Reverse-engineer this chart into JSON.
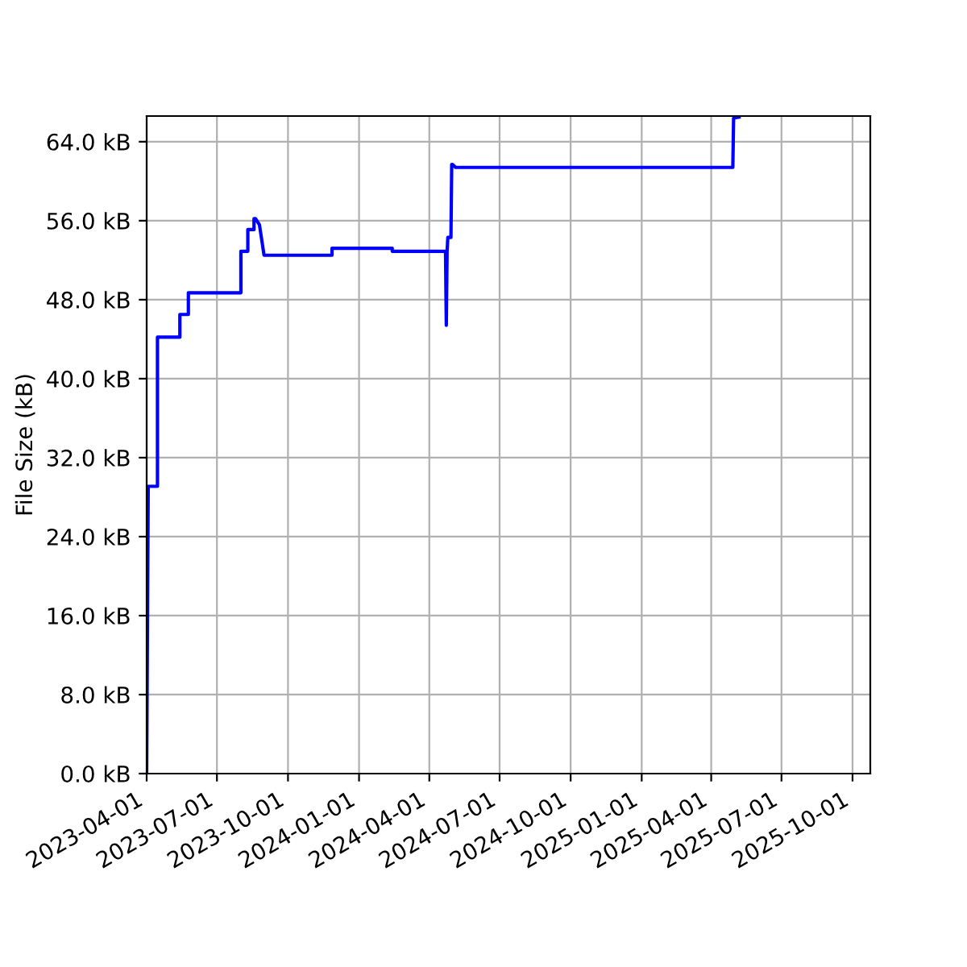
{
  "chart_data": {
    "type": "line",
    "ylabel": "File Size (kB)",
    "x": [
      "2023-04-01",
      "2023-04-03",
      "2023-04-15",
      "2023-04-15",
      "2023-05-14",
      "2023-05-14",
      "2023-05-25",
      "2023-05-25",
      "2023-08-01",
      "2023-08-01",
      "2023-08-10",
      "2023-08-10",
      "2023-08-18",
      "2023-08-18",
      "2023-08-20",
      "2023-08-25",
      "2023-08-31",
      "2023-11-27",
      "2023-11-27",
      "2024-02-13",
      "2024-02-13",
      "2024-04-22",
      "2024-04-23",
      "2024-04-24",
      "2024-04-25",
      "2024-04-29",
      "2024-04-30",
      "2024-05-01",
      "2024-05-05",
      "2025-04-29",
      "2025-04-30",
      "2025-05-07"
    ],
    "series": [
      {
        "color": "#0000ff",
        "values": [
          0,
          29.1,
          29.1,
          44.2,
          44.2,
          46.5,
          46.5,
          48.7,
          48.7,
          52.9,
          52.9,
          55.1,
          55.1,
          56.2,
          56.2,
          55.6,
          52.5,
          52.5,
          53.2,
          53.2,
          52.9,
          52.9,
          45.4,
          52.9,
          54.3,
          54.3,
          61.7,
          61.7,
          61.4,
          61.4,
          66.4,
          66.5
        ]
      }
    ],
    "xlim": [
      "2023-04-01",
      "2025-10-24"
    ],
    "xticks": [
      "2023-04-01",
      "2023-07-01",
      "2023-10-01",
      "2024-01-01",
      "2024-04-01",
      "2024-07-01",
      "2024-10-01",
      "2025-01-01",
      "2025-04-01",
      "2025-07-01",
      "2025-10-01"
    ],
    "ylim": [
      0,
      66.6
    ],
    "yticks": [
      {
        "value": 0,
        "label": "0.0 kB"
      },
      {
        "value": 8,
        "label": "8.0 kB"
      },
      {
        "value": 16,
        "label": "16.0 kB"
      },
      {
        "value": 24,
        "label": "24.0 kB"
      },
      {
        "value": 32,
        "label": "32.0 kB"
      },
      {
        "value": 40,
        "label": "40.0 kB"
      },
      {
        "value": 48,
        "label": "48.0 kB"
      },
      {
        "value": 56,
        "label": "56.0 kB"
      },
      {
        "value": 64,
        "label": "64.0 kB"
      }
    ],
    "grid": true
  }
}
